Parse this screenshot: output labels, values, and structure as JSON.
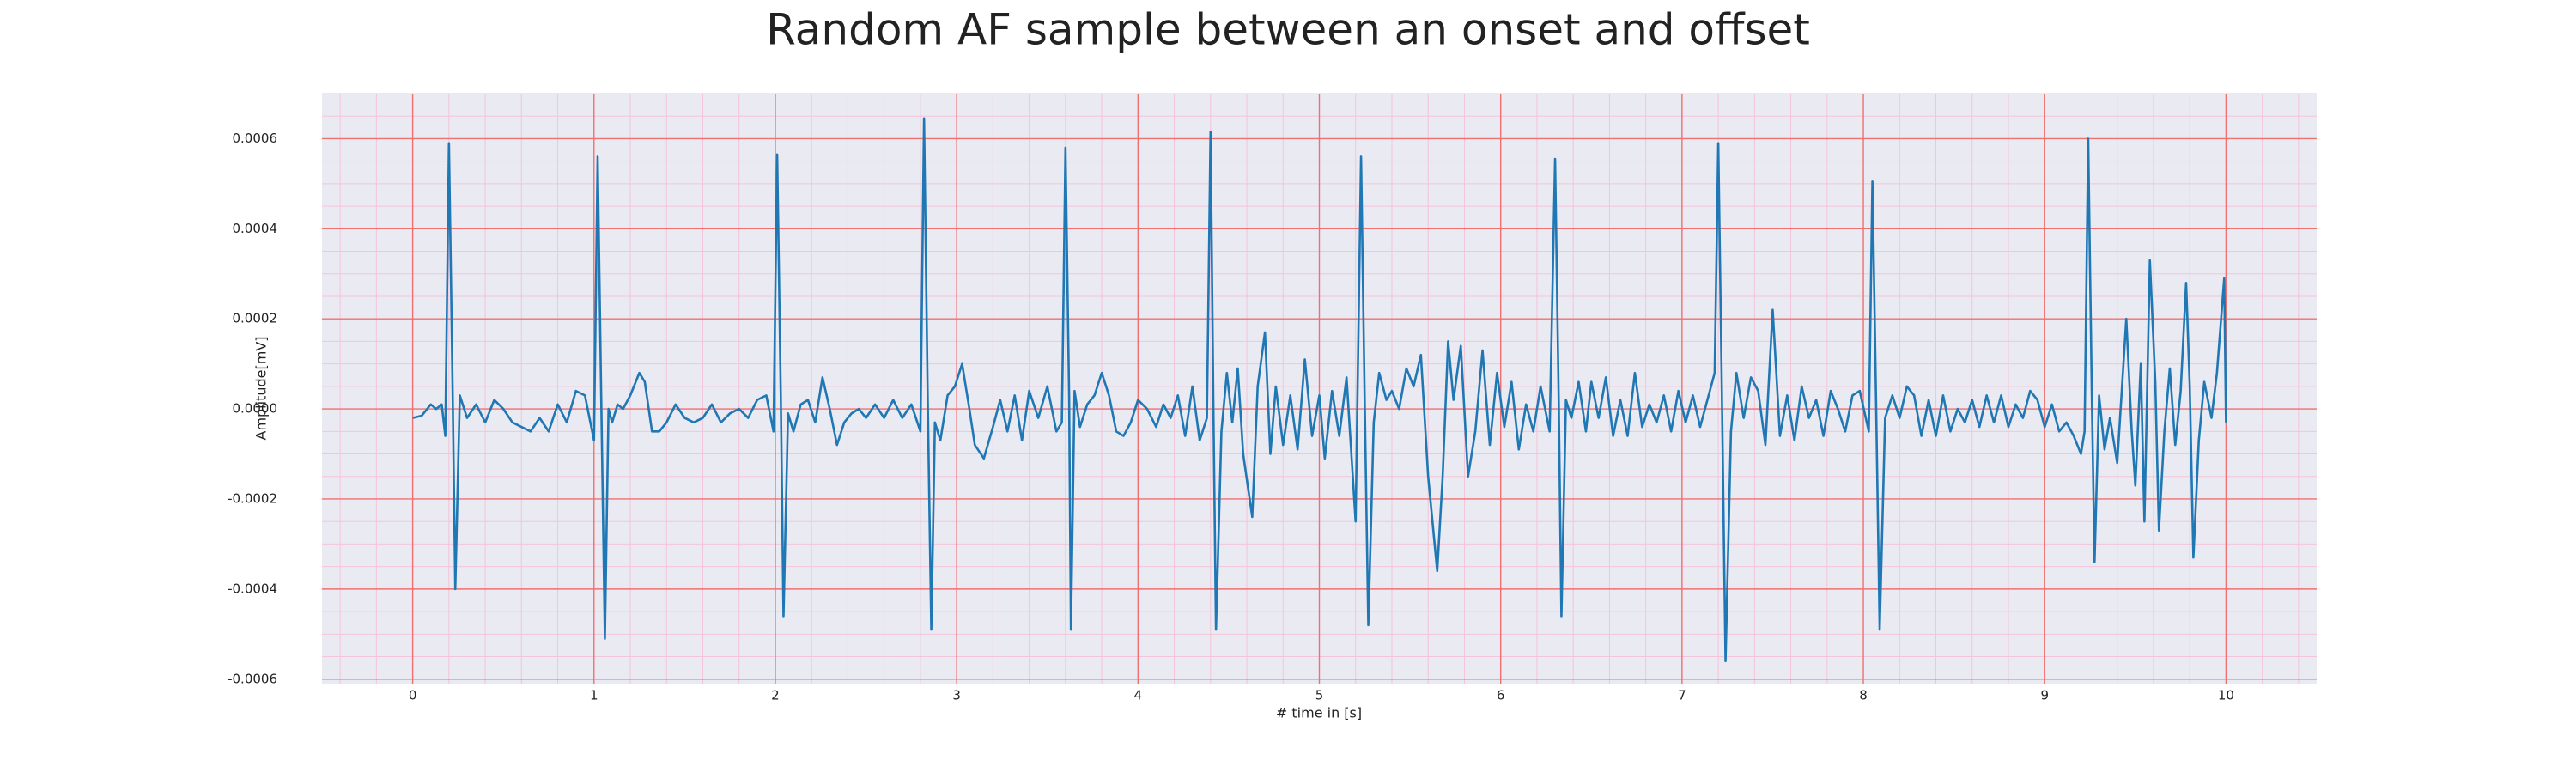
{
  "chart_data": {
    "type": "line",
    "title": "Random AF sample between an onset and offset",
    "xlabel": "# time in [s]",
    "ylabel": "Amplitude[mV]",
    "color": "#1f77b4",
    "facecolor": "#eaeaf2",
    "grid": true,
    "grid_color": "#f07070",
    "minor_grid": true,
    "minor_grid_color": "#f4c4d8",
    "xlim": [
      -0.5,
      10.5
    ],
    "ylim": [
      -0.00061,
      0.0007
    ],
    "xticks": [
      0,
      1,
      2,
      3,
      4,
      5,
      6,
      7,
      8,
      9,
      10
    ],
    "yticks": [
      -0.0006,
      -0.0004,
      -0.0002,
      {
        "value": 0,
        "label": "0.0000"
      },
      0.0002,
      0.0004,
      0.0006
    ],
    "xminorticks": [
      -0.4,
      -0.2,
      0,
      0.2,
      0.4,
      0.6,
      0.8,
      1,
      1.2,
      1.4,
      1.6,
      1.8,
      2,
      2.2,
      2.4,
      2.6,
      2.8,
      3,
      3.2,
      3.4,
      3.6,
      3.8,
      4,
      4.2,
      4.4,
      4.6,
      4.8,
      5,
      5.2,
      5.4,
      5.6,
      5.8,
      6,
      6.2,
      6.4,
      6.6,
      6.8,
      7,
      7.2,
      7.4,
      7.6,
      7.8,
      8,
      8.2,
      8.4,
      8.6,
      8.8,
      9,
      9.2,
      9.4,
      9.6,
      9.8,
      10,
      10.2,
      10.4
    ],
    "yminorticks": [
      -0.0006,
      -0.00055,
      -0.0005,
      -0.00045,
      -0.0004,
      -0.00035,
      -0.0003,
      -0.00025,
      -0.0002,
      -0.00015,
      -0.0001,
      -5e-05,
      0,
      5e-05,
      0.0001,
      0.00015,
      0.0002,
      0.00025,
      0.0003,
      0.00035,
      0.0004,
      0.00045,
      0.0005,
      0.00055,
      0.0006,
      0.00065,
      0.0007
    ],
    "x": [
      0,
      0.05,
      0.1,
      0.13,
      0.16,
      0.18,
      0.2,
      0.22,
      0.235,
      0.26,
      0.3,
      0.35,
      0.4,
      0.45,
      0.5,
      0.55,
      0.6,
      0.65,
      0.7,
      0.75,
      0.8,
      0.85,
      0.9,
      0.95,
      1.0,
      1.02,
      1.04,
      1.06,
      1.08,
      1.1,
      1.13,
      1.16,
      1.2,
      1.25,
      1.28,
      1.32,
      1.36,
      1.4,
      1.45,
      1.5,
      1.55,
      1.6,
      1.65,
      1.7,
      1.75,
      1.8,
      1.85,
      1.9,
      1.95,
      1.99,
      2.01,
      2.03,
      2.045,
      2.07,
      2.1,
      2.14,
      2.18,
      2.22,
      2.26,
      2.3,
      2.34,
      2.38,
      2.42,
      2.46,
      2.5,
      2.55,
      2.6,
      2.65,
      2.7,
      2.75,
      2.8,
      2.82,
      2.84,
      2.86,
      2.88,
      2.91,
      2.95,
      2.99,
      3.03,
      3.07,
      3.1,
      3.15,
      3.2,
      3.24,
      3.28,
      3.32,
      3.36,
      3.4,
      3.45,
      3.5,
      3.55,
      3.58,
      3.6,
      3.62,
      3.63,
      3.65,
      3.68,
      3.72,
      3.76,
      3.8,
      3.84,
      3.88,
      3.92,
      3.96,
      4.0,
      4.05,
      4.1,
      4.14,
      4.18,
      4.22,
      4.26,
      4.3,
      4.34,
      4.38,
      4.4,
      4.415,
      4.43,
      4.46,
      4.49,
      4.52,
      4.55,
      4.58,
      4.63,
      4.66,
      4.7,
      4.73,
      4.76,
      4.8,
      4.84,
      4.88,
      4.92,
      4.96,
      5.0,
      5.03,
      5.07,
      5.11,
      5.15,
      5.2,
      5.23,
      5.25,
      5.27,
      5.3,
      5.33,
      5.37,
      5.4,
      5.44,
      5.48,
      5.52,
      5.56,
      5.6,
      5.65,
      5.68,
      5.71,
      5.74,
      5.78,
      5.82,
      5.86,
      5.9,
      5.94,
      5.98,
      6.02,
      6.06,
      6.1,
      6.14,
      6.18,
      6.22,
      6.27,
      6.3,
      6.32,
      6.335,
      6.36,
      6.39,
      6.43,
      6.47,
      6.5,
      6.54,
      6.58,
      6.62,
      6.66,
      6.7,
      6.74,
      6.78,
      6.82,
      6.86,
      6.9,
      6.94,
      6.98,
      7.02,
      7.06,
      7.1,
      7.14,
      7.18,
      7.2,
      7.22,
      7.24,
      7.27,
      7.3,
      7.34,
      7.38,
      7.42,
      7.46,
      7.5,
      7.54,
      7.58,
      7.62,
      7.66,
      7.7,
      7.74,
      7.78,
      7.82,
      7.86,
      7.9,
      7.94,
      7.98,
      8.03,
      8.05,
      8.07,
      8.09,
      8.12,
      8.16,
      8.2,
      8.24,
      8.28,
      8.32,
      8.36,
      8.4,
      8.44,
      8.48,
      8.52,
      8.56,
      8.6,
      8.64,
      8.68,
      8.72,
      8.76,
      8.8,
      8.84,
      8.88,
      8.92,
      8.96,
      9.0,
      9.04,
      9.08,
      9.12,
      9.16,
      9.2,
      9.22,
      9.24,
      9.26,
      9.275,
      9.3,
      9.33,
      9.36,
      9.4,
      9.45,
      9.48,
      9.5,
      9.53,
      9.55,
      9.58,
      9.61,
      9.63,
      9.66,
      9.69,
      9.72,
      9.75,
      9.78,
      9.8,
      9.82,
      9.85,
      9.88,
      9.92,
      9.95,
      9.99,
      10.0
    ],
    "values": [
      -2e-05,
      -1.5e-05,
      1e-05,
      0,
      1e-05,
      -6e-05,
      0.00059,
      5e-05,
      -0.0004,
      3e-05,
      -2e-05,
      1e-05,
      -3e-05,
      2e-05,
      0,
      -3e-05,
      -4e-05,
      -5e-05,
      -2e-05,
      -5e-05,
      1e-05,
      -3e-05,
      4e-05,
      3e-05,
      -7e-05,
      0.00056,
      2e-05,
      -0.00051,
      0,
      -3e-05,
      1e-05,
      0,
      3e-05,
      8e-05,
      6e-05,
      -5e-05,
      -5e-05,
      -3e-05,
      1e-05,
      -2e-05,
      -3e-05,
      -2e-05,
      1e-05,
      -3e-05,
      -1e-05,
      0,
      -2e-05,
      2e-05,
      3e-05,
      -5e-05,
      0.000565,
      3e-05,
      -0.00046,
      -1e-05,
      -5e-05,
      1e-05,
      2e-05,
      -3e-05,
      7e-05,
      0,
      -8e-05,
      -3e-05,
      -1e-05,
      0,
      -2e-05,
      1e-05,
      -2e-05,
      2e-05,
      -2e-05,
      1e-05,
      -5e-05,
      0.000645,
      3e-05,
      -0.00049,
      -3e-05,
      -7e-05,
      3e-05,
      5e-05,
      0.0001,
      0,
      -8e-05,
      -0.00011,
      -4e-05,
      2e-05,
      -5e-05,
      3e-05,
      -7e-05,
      4e-05,
      -2e-05,
      5e-05,
      -5e-05,
      -3e-05,
      0.00058,
      3e-05,
      -0.00049,
      4e-05,
      -4e-05,
      1e-05,
      3e-05,
      8e-05,
      3e-05,
      -5e-05,
      -6e-05,
      -3e-05,
      2e-05,
      0,
      -4e-05,
      1e-05,
      -2e-05,
      3e-05,
      -6e-05,
      5e-05,
      -7e-05,
      -2e-05,
      0.000615,
      3e-05,
      -0.00049,
      -5e-05,
      8e-05,
      -3e-05,
      9e-05,
      -0.0001,
      -0.00024,
      5e-05,
      0.00017,
      -0.0001,
      5e-05,
      -8e-05,
      3e-05,
      -9e-05,
      0.00011,
      -6e-05,
      3e-05,
      -0.00011,
      4e-05,
      -6e-05,
      7e-05,
      -0.00025,
      0.00056,
      2e-05,
      -0.00048,
      -3e-05,
      8e-05,
      2e-05,
      4e-05,
      0,
      9e-05,
      5e-05,
      0.00012,
      -0.00015,
      -0.00036,
      -0.00015,
      0.00015,
      2e-05,
      0.00014,
      -0.00015,
      -5e-05,
      0.00013,
      -8e-05,
      8e-05,
      -4e-05,
      6e-05,
      -9e-05,
      1e-05,
      -5e-05,
      5e-05,
      -5e-05,
      0.000555,
      2e-05,
      -0.00046,
      2e-05,
      -2e-05,
      6e-05,
      -5e-05,
      6e-05,
      -2e-05,
      7e-05,
      -6e-05,
      2e-05,
      -6e-05,
      8e-05,
      -4e-05,
      1e-05,
      -3e-05,
      3e-05,
      -5e-05,
      4e-05,
      -3e-05,
      3e-05,
      -4e-05,
      2e-05,
      8e-05,
      0.00059,
      3e-05,
      -0.00056,
      -5e-05,
      8e-05,
      -2e-05,
      7e-05,
      4e-05,
      -8e-05,
      0.00022,
      -6e-05,
      3e-05,
      -7e-05,
      5e-05,
      -2e-05,
      2e-05,
      -6e-05,
      4e-05,
      0,
      -5e-05,
      3e-05,
      4e-05,
      -5e-05,
      0.000505,
      2e-05,
      -0.00049,
      -2e-05,
      3e-05,
      -2e-05,
      5e-05,
      3e-05,
      -6e-05,
      2e-05,
      -6e-05,
      3e-05,
      -5e-05,
      0,
      -3e-05,
      2e-05,
      -4e-05,
      3e-05,
      -3e-05,
      3e-05,
      -4e-05,
      1e-05,
      -2e-05,
      4e-05,
      2e-05,
      -4e-05,
      1e-05,
      -5e-05,
      -3e-05,
      -6e-05,
      -0.0001,
      -5e-05,
      0.0006,
      3e-05,
      -0.00034,
      3e-05,
      -9e-05,
      -2e-05,
      -0.00012,
      0.0002,
      -5e-05,
      -0.00017,
      0.0001,
      -0.00025,
      0.00033,
      6e-05,
      -0.00027,
      -5e-05,
      9e-05,
      -8e-05,
      4e-05,
      0.00028,
      5e-05,
      -0.00033,
      -7e-05,
      6e-05,
      -2e-05,
      8e-05,
      0.00029,
      -3e-05
    ]
  }
}
